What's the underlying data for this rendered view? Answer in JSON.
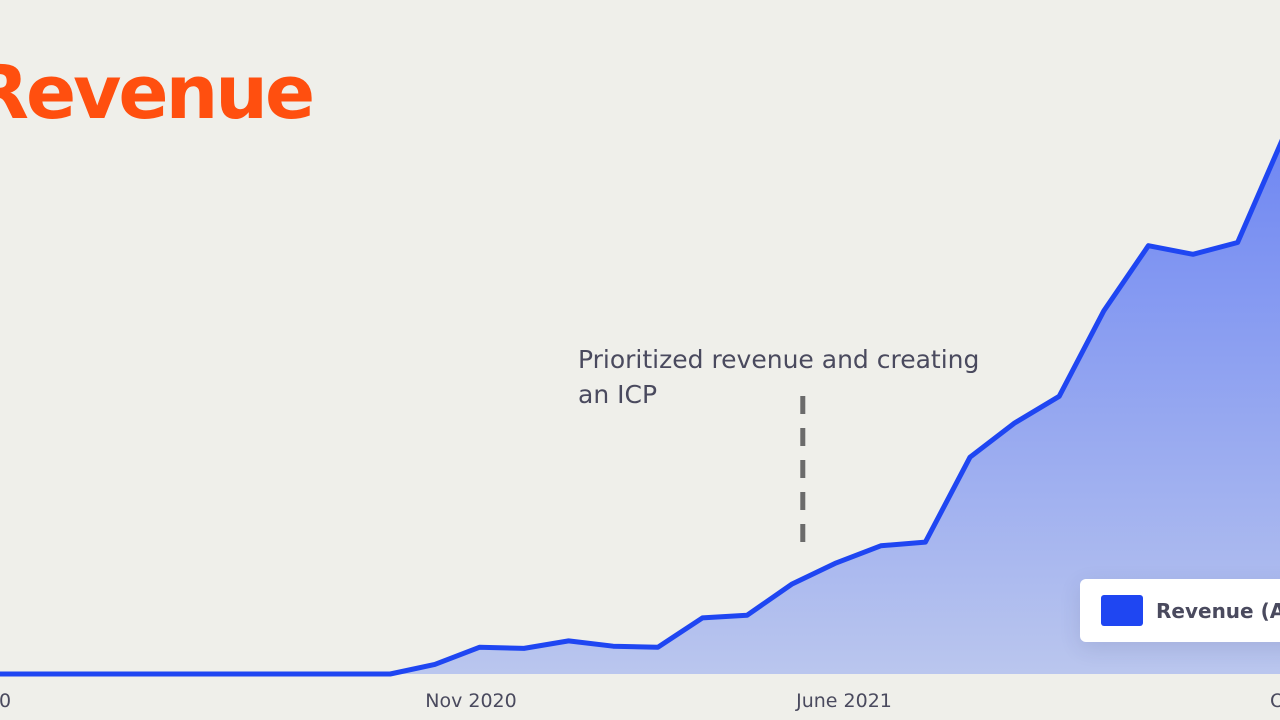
{
  "colors": {
    "background": "#efefea",
    "title": "#ff4f0f",
    "line": "#1f46f2",
    "fill_top": "#6f87f3",
    "fill_bottom": "#bac6ee",
    "text": "#4a4a5e",
    "marker": "#6b6b6b"
  },
  "chart_data": {
    "type": "area",
    "title": "Revenue",
    "x_tick_labels": [
      "0",
      "Nov 2020",
      "June 2021",
      "O"
    ],
    "annotation": {
      "text": "Prioritized revenue and creating an ICP",
      "x": 18.0
    },
    "legend": {
      "label": "Revenue (Ann",
      "placement": "bottom-right"
    },
    "grid": false,
    "xlim": [
      0,
      28.7
    ],
    "ylim": [
      0,
      100
    ],
    "series": [
      {
        "points": [
          [
            0,
            0
          ],
          [
            8.75,
            0
          ],
          [
            9.75,
            1.8
          ],
          [
            10.75,
            5
          ],
          [
            11.75,
            4.8
          ],
          [
            12.75,
            6.2
          ],
          [
            13.75,
            5.2
          ],
          [
            14.75,
            5
          ],
          [
            15.75,
            10.5
          ],
          [
            16.75,
            11
          ],
          [
            17.75,
            16.8
          ],
          [
            18.75,
            20.8
          ],
          [
            19.75,
            24
          ],
          [
            20.75,
            24.7
          ],
          [
            21.75,
            40.6
          ],
          [
            22.75,
            47
          ],
          [
            23.75,
            52
          ],
          [
            24.75,
            68
          ],
          [
            25.75,
            80.2
          ],
          [
            26.75,
            78.6
          ],
          [
            27.75,
            80.8
          ],
          [
            28.75,
            100
          ]
        ]
      }
    ]
  }
}
